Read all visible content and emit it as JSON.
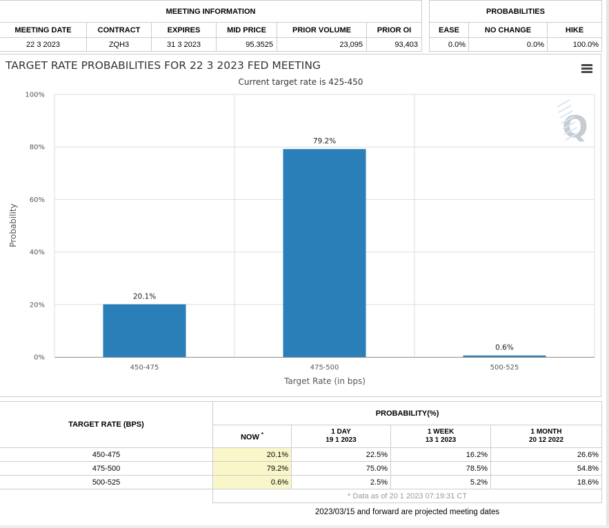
{
  "meeting_info": {
    "title": "MEETING INFORMATION",
    "headers": [
      "MEETING DATE",
      "CONTRACT",
      "EXPIRES",
      "MID PRICE",
      "PRIOR VOLUME",
      "PRIOR OI"
    ],
    "row": [
      "22 3 2023",
      "ZQH3",
      "31 3 2023",
      "95.3525",
      "23,095",
      "93,403"
    ]
  },
  "probabilities": {
    "title": "PROBABILITIES",
    "headers": [
      "EASE",
      "NO CHANGE",
      "HIKE"
    ],
    "row": [
      "0.0%",
      "0.0%",
      "100.0%"
    ]
  },
  "chart_data": {
    "type": "bar",
    "title": "TARGET RATE PROBABILITIES FOR 22 3 2023 FED MEETING",
    "subtitle": "Current target rate is 425-450",
    "categories": [
      "450-475",
      "475-500",
      "500-525"
    ],
    "values": [
      20.1,
      79.2,
      0.6
    ],
    "data_labels": [
      "20.1%",
      "79.2%",
      "0.6%"
    ],
    "xlabel": "Target Rate (in bps)",
    "ylabel": "Probability",
    "ylim": [
      0,
      100
    ],
    "y_ticks": [
      0,
      20,
      40,
      60,
      80,
      100
    ],
    "y_tick_labels": [
      "0%",
      "20%",
      "40%",
      "60%",
      "80%",
      "100%"
    ],
    "grid": true,
    "bar_color": "#2b7fb8"
  },
  "watermark": {
    "icon": "q-logo-icon",
    "letter": "Q",
    "color": "#c7ccd3"
  },
  "prob_table": {
    "target_header": "TARGET RATE (BPS)",
    "prob_header": "PROBABILITY(%)",
    "periods": [
      {
        "label": "NOW",
        "marker": "*",
        "date": ""
      },
      {
        "label": "1 DAY",
        "marker": "",
        "date": "19 1 2023"
      },
      {
        "label": "1 WEEK",
        "marker": "",
        "date": "13 1 2023"
      },
      {
        "label": "1 MONTH",
        "marker": "",
        "date": "20 12 2022"
      }
    ],
    "rows": [
      {
        "rate": "450-475",
        "values": [
          "20.1%",
          "22.5%",
          "16.2%",
          "26.6%"
        ]
      },
      {
        "rate": "475-500",
        "values": [
          "79.2%",
          "75.0%",
          "78.5%",
          "54.8%"
        ]
      },
      {
        "rate": "500-525",
        "values": [
          "0.6%",
          "2.5%",
          "5.2%",
          "18.6%"
        ]
      }
    ],
    "data_note": "* Data as of 20 1 2023 07:19:31 CT",
    "projection_note": "2023/03/15 and forward are projected meeting dates"
  },
  "menu": {
    "icon": "hamburger-menu-icon"
  },
  "colors": {
    "now_highlight": "#f9f7c9",
    "border": "#cccccc"
  }
}
